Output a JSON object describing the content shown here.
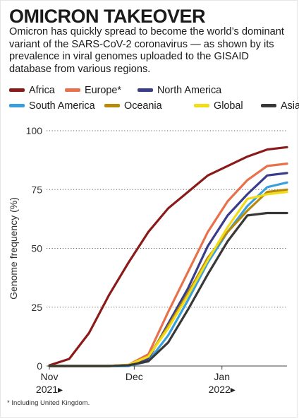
{
  "header": {
    "title": "OMICRON TAKEOVER",
    "subtitle": "Omicron has quickly spread to become the world’s dominant variant of the SARS-CoV-2 coronavirus — as shown by its prevalence in viral genomes uploaded to the GISAID database from various regions."
  },
  "footnote": "* Including United Kingdom.",
  "chart_data": {
    "type": "line",
    "title": "",
    "xlabel": "",
    "ylabel": "Genome frequency (%)",
    "ylim": [
      0,
      100
    ],
    "yticks": [
      0,
      25,
      50,
      75,
      100
    ],
    "grid": "horizontal dotted",
    "legend": "top",
    "x": [
      "2021-11-01",
      "2021-11-08",
      "2021-11-15",
      "2021-11-22",
      "2021-11-29",
      "2021-12-06",
      "2021-12-13",
      "2021-12-20",
      "2021-12-27",
      "2022-01-03",
      "2022-01-10",
      "2022-01-17",
      "2022-01-24"
    ],
    "xticks": [
      {
        "value": "2021-11-01",
        "label": "Nov",
        "year": "2021"
      },
      {
        "value": "2021-12-01",
        "label": "Dec",
        "year": ""
      },
      {
        "value": "2022-01-01",
        "label": "Jan",
        "year": "2022"
      }
    ],
    "series": [
      {
        "name": "Africa",
        "color": "#8b1a1a",
        "values": [
          0.3,
          3,
          14,
          30,
          44,
          57,
          67,
          74,
          81,
          85,
          89,
          92,
          93
        ]
      },
      {
        "name": "Europe*",
        "color": "#e8704a",
        "values": [
          0,
          0,
          0,
          0,
          0.5,
          5,
          23,
          40,
          57,
          70,
          79,
          85,
          86
        ]
      },
      {
        "name": "North America",
        "color": "#3a3d8a",
        "values": [
          0,
          0,
          0,
          0,
          0.3,
          3,
          18,
          33,
          51,
          64,
          73,
          81,
          82
        ]
      },
      {
        "name": "South America",
        "color": "#3aa0dc",
        "values": [
          0,
          0,
          0,
          0,
          0,
          2,
          13,
          28,
          44,
          57,
          68,
          76,
          78
        ]
      },
      {
        "name": "Oceania",
        "color": "#b88a0a",
        "values": [
          0,
          0,
          0,
          0,
          0.5,
          4,
          17,
          31,
          46,
          57,
          66,
          74,
          75
        ]
      },
      {
        "name": "Global",
        "color": "#f2dc1a",
        "values": [
          0,
          0,
          0,
          0,
          0.5,
          4,
          16,
          30,
          45,
          59,
          71,
          73,
          74
        ]
      },
      {
        "name": "Asia",
        "color": "#383838",
        "values": [
          0,
          0,
          0,
          0,
          0.3,
          2,
          10,
          24,
          39,
          53,
          64,
          65,
          65
        ]
      }
    ]
  }
}
